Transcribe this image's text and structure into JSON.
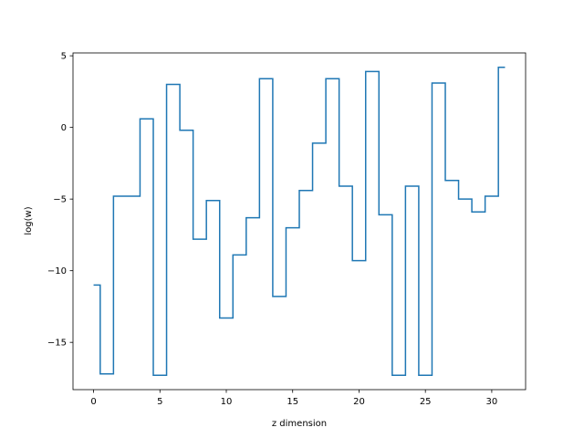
{
  "chart_data": {
    "type": "line",
    "style": "steps-mid",
    "title": "",
    "xlabel": "z dimension",
    "ylabel": "log(w)",
    "xlim": [
      -1.55,
      32.55
    ],
    "ylim": [
      -18.3,
      5.2
    ],
    "xticks": [
      0,
      5,
      10,
      15,
      20,
      25,
      30
    ],
    "yticks": [
      -15,
      -10,
      -5,
      0,
      5
    ],
    "ytick_labels": [
      "−15",
      "−10",
      "−5",
      "0",
      "5"
    ],
    "grid": false,
    "line_color": "#1f77b4",
    "x": [
      0,
      1,
      2,
      3,
      4,
      5,
      6,
      7,
      8,
      9,
      10,
      11,
      12,
      13,
      14,
      15,
      16,
      17,
      18,
      19,
      20,
      21,
      22,
      23,
      24,
      25,
      26,
      27,
      28,
      29,
      30,
      31
    ],
    "y": [
      -11.0,
      -17.2,
      -4.8,
      -4.8,
      0.6,
      -17.3,
      3.0,
      -0.2,
      -7.8,
      -5.1,
      -13.3,
      -8.9,
      -6.3,
      3.4,
      -11.8,
      -7.0,
      -4.4,
      -1.1,
      3.4,
      -4.1,
      -9.3,
      3.9,
      -6.1,
      -17.3,
      -4.1,
      -17.3,
      3.1,
      -3.7,
      -5.0,
      -5.9,
      -4.8,
      4.2
    ]
  }
}
